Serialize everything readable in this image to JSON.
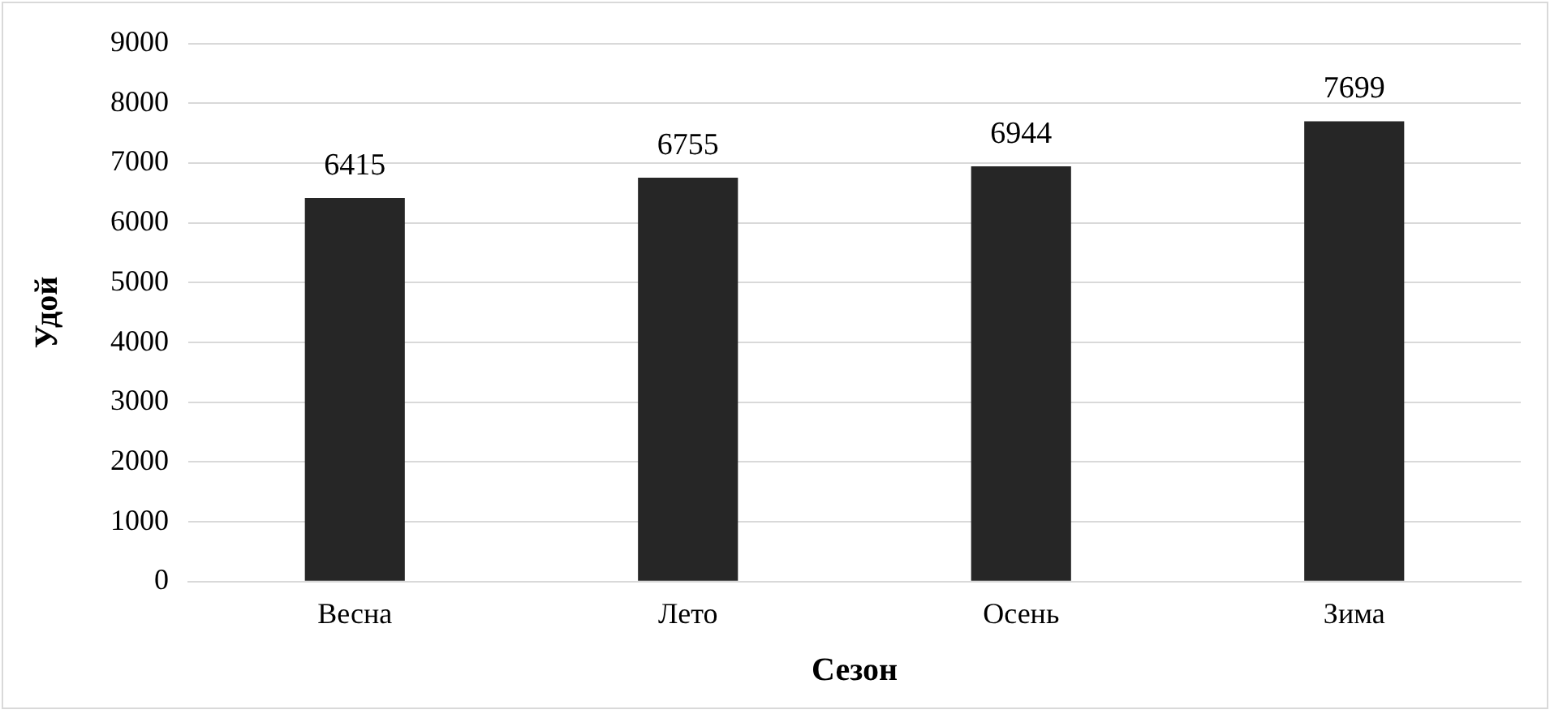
{
  "chart_data": {
    "type": "bar",
    "xlabel": "Сезон",
    "ylabel": "Удой",
    "categories": [
      "Весна",
      "Лето",
      "Осень",
      "Зима"
    ],
    "series": [
      {
        "color": "#262626",
        "values": [
          6415,
          6755,
          6944,
          7699
        ]
      }
    ],
    "ylim": [
      0,
      9000
    ],
    "yticks": [
      0,
      1000,
      2000,
      3000,
      4000,
      5000,
      6000,
      7000,
      8000,
      9000
    ],
    "grid": "y",
    "data_labels": true,
    "legend": false
  }
}
